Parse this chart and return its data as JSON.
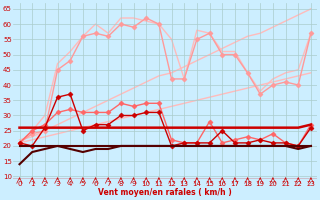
{
  "x": [
    0,
    1,
    2,
    3,
    4,
    5,
    6,
    7,
    8,
    9,
    10,
    11,
    12,
    13,
    14,
    15,
    16,
    17,
    18,
    19,
    20,
    21,
    22,
    23
  ],
  "series": [
    {
      "name": "rafales_light",
      "y": [
        21,
        25,
        30,
        47,
        51,
        56,
        60,
        57,
        62,
        62,
        61,
        60,
        55,
        42,
        58,
        57,
        51,
        51,
        44,
        38,
        42,
        44,
        45,
        57
      ],
      "color": "#ffbbbb",
      "lw": 1.0,
      "marker": null,
      "ms": 0,
      "zorder": 1
    },
    {
      "name": "trend_upper",
      "y": [
        22,
        23,
        25,
        27,
        29,
        31,
        33,
        35,
        37,
        39,
        41,
        43,
        44,
        46,
        48,
        50,
        52,
        54,
        56,
        57,
        59,
        61,
        63,
        65
      ],
      "color": "#ffbbbb",
      "lw": 1.0,
      "marker": null,
      "ms": 0,
      "zorder": 1
    },
    {
      "name": "trend_lower",
      "y": [
        21,
        22,
        23,
        24,
        25,
        26,
        27,
        28,
        29,
        30,
        31,
        32,
        33,
        34,
        35,
        36,
        37,
        38,
        39,
        40,
        41,
        42,
        43,
        44
      ],
      "color": "#ffbbbb",
      "lw": 1.0,
      "marker": null,
      "ms": 0,
      "zorder": 1
    },
    {
      "name": "rafales_medium",
      "y": [
        21,
        24,
        25,
        45,
        48,
        56,
        57,
        56,
        60,
        59,
        62,
        60,
        42,
        42,
        55,
        57,
        50,
        50,
        44,
        37,
        40,
        41,
        40,
        57
      ],
      "color": "#ff9999",
      "lw": 1.0,
      "marker": "D",
      "ms": 2.5,
      "zorder": 2
    },
    {
      "name": "moyen_medium",
      "y": [
        21,
        25,
        27,
        31,
        32,
        31,
        31,
        31,
        34,
        33,
        34,
        34,
        22,
        21,
        21,
        28,
        21,
        22,
        23,
        22,
        24,
        21,
        20,
        27
      ],
      "color": "#ff6666",
      "lw": 1.0,
      "marker": "D",
      "ms": 2.5,
      "zorder": 3
    },
    {
      "name": "flat_line_upper",
      "y": [
        26,
        26,
        26,
        26,
        26,
        26,
        26,
        26,
        26,
        26,
        26,
        26,
        26,
        26,
        26,
        26,
        26,
        26,
        26,
        26,
        26,
        26,
        26,
        27
      ],
      "color": "#cc0000",
      "lw": 1.8,
      "marker": null,
      "ms": 0,
      "zorder": 5
    },
    {
      "name": "moyen_strong",
      "y": [
        21,
        20,
        26,
        36,
        37,
        25,
        27,
        27,
        30,
        30,
        31,
        31,
        20,
        21,
        21,
        21,
        25,
        21,
        21,
        22,
        21,
        21,
        20,
        26
      ],
      "color": "#cc0000",
      "lw": 1.0,
      "marker": "D",
      "ms": 2.5,
      "zorder": 5
    },
    {
      "name": "baseline_curve",
      "y": [
        14,
        18,
        19,
        20,
        19,
        18,
        19,
        19,
        20,
        20,
        20,
        20,
        20,
        20,
        20,
        20,
        20,
        20,
        20,
        20,
        20,
        20,
        19,
        20
      ],
      "color": "#550000",
      "lw": 1.5,
      "marker": null,
      "ms": 0,
      "zorder": 6
    },
    {
      "name": "flat_line_lower",
      "y": [
        20,
        20,
        20,
        20,
        20,
        20,
        20,
        20,
        20,
        20,
        20,
        20,
        20,
        20,
        20,
        20,
        20,
        20,
        20,
        20,
        20,
        20,
        20,
        20
      ],
      "color": "#550000",
      "lw": 1.5,
      "marker": null,
      "ms": 0,
      "zorder": 6
    }
  ],
  "xlabel": "Vent moyen/en rafales ( km/h )",
  "yticks": [
    10,
    15,
    20,
    25,
    30,
    35,
    40,
    45,
    50,
    55,
    60,
    65
  ],
  "xlim": [
    -0.5,
    23.5
  ],
  "ylim": [
    9,
    67
  ],
  "bg_color": "#cceeff",
  "grid_color": "#aacccc",
  "axis_color": "#cc0000",
  "arrow_color": "#cc0000"
}
